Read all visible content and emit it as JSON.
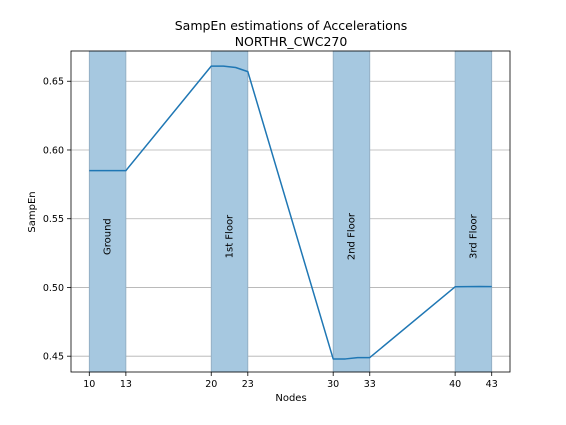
{
  "chart_data": {
    "type": "line",
    "title": "SampEn estimations of Accelerations",
    "subtitle": "NORTHR_CWC270",
    "xlabel": "Nodes",
    "ylabel": "SampEn",
    "xlim": [
      8.5,
      44.5
    ],
    "ylim": [
      0.4385,
      0.672
    ],
    "xticks": [
      10,
      13,
      20,
      23,
      30,
      33,
      40,
      43
    ],
    "yticks": [
      0.45,
      0.5,
      0.55,
      0.6,
      0.65
    ],
    "ytick_labels": [
      "0.45",
      "0.50",
      "0.55",
      "0.60",
      "0.65"
    ],
    "grid": "horizontal",
    "series": [
      {
        "color": "#1f77b4",
        "x": [
          10,
          11,
          12,
          13,
          20,
          21,
          22,
          23,
          30,
          31,
          32,
          33,
          40,
          41,
          42,
          43
        ],
        "y": [
          0.585,
          0.585,
          0.585,
          0.585,
          0.661,
          0.661,
          0.66,
          0.657,
          0.448,
          0.448,
          0.449,
          0.449,
          0.5005,
          0.5006,
          0.5007,
          0.5006
        ]
      }
    ],
    "bands": [
      {
        "label": "Ground",
        "x0": 10,
        "x1": 13
      },
      {
        "label": "1st Floor",
        "x0": 20,
        "x1": 23
      },
      {
        "label": "2nd Floor",
        "x0": 30,
        "x1": 33
      },
      {
        "label": "3rd Floor",
        "x0": 40,
        "x1": 43
      }
    ],
    "band_color": "#a6c8e0",
    "band_edge_color": "#8fa9bd",
    "band_label_y": 0.537
  }
}
